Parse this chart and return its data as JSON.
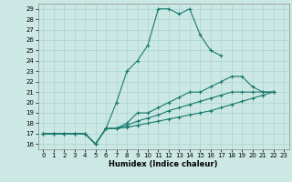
{
  "xlabel": "Humidex (Indice chaleur)",
  "bg_color": "#cce8e4",
  "line_color": "#1a7a6e",
  "grid_color": "#aad4d0",
  "xlim": [
    -0.5,
    23.5
  ],
  "ylim": [
    15.5,
    29.5
  ],
  "xticks": [
    0,
    1,
    2,
    3,
    4,
    5,
    6,
    7,
    8,
    9,
    10,
    11,
    12,
    13,
    14,
    15,
    16,
    17,
    18,
    19,
    20,
    21,
    22,
    23
  ],
  "yticks": [
    16,
    17,
    18,
    19,
    20,
    21,
    22,
    23,
    24,
    25,
    26,
    27,
    28,
    29
  ],
  "line1_x": [
    0,
    1,
    2,
    3,
    4,
    5,
    6,
    7,
    8,
    9,
    10,
    11,
    12,
    13,
    14,
    15,
    16,
    17
  ],
  "line1_y": [
    17,
    17,
    17,
    17,
    17,
    16,
    17.5,
    20,
    23,
    24,
    25.5,
    29,
    29,
    28.5,
    29,
    26.5,
    25,
    24.5
  ],
  "line2_x": [
    0,
    1,
    2,
    3,
    4,
    5,
    6,
    7,
    8,
    9,
    10,
    11,
    12,
    13,
    14,
    15,
    16,
    17,
    18,
    19,
    20,
    21,
    22
  ],
  "line2_y": [
    17,
    17,
    17,
    17,
    17,
    16,
    17.5,
    17.5,
    18,
    19,
    19,
    19.5,
    20,
    20.5,
    21,
    21,
    21.5,
    22,
    22.5,
    22.5,
    21.5,
    21,
    21
  ],
  "line3_x": [
    0,
    1,
    2,
    3,
    4,
    5,
    6,
    7,
    8,
    9,
    10,
    11,
    12,
    13,
    14,
    15,
    16,
    17,
    18,
    19,
    20,
    21,
    22
  ],
  "line3_y": [
    17,
    17,
    17,
    17,
    17,
    16,
    17.5,
    17.5,
    17.8,
    18.2,
    18.5,
    18.8,
    19.2,
    19.5,
    19.8,
    20.1,
    20.4,
    20.7,
    21,
    21,
    21,
    21,
    21
  ],
  "line4_x": [
    0,
    1,
    2,
    3,
    4,
    5,
    6,
    7,
    8,
    9,
    10,
    11,
    12,
    13,
    14,
    15,
    16,
    17,
    18,
    19,
    20,
    21,
    22
  ],
  "line4_y": [
    17,
    17,
    17,
    17,
    17,
    16,
    17.5,
    17.5,
    17.6,
    17.8,
    18,
    18.2,
    18.4,
    18.6,
    18.8,
    19,
    19.2,
    19.5,
    19.8,
    20.1,
    20.4,
    20.7,
    21
  ]
}
